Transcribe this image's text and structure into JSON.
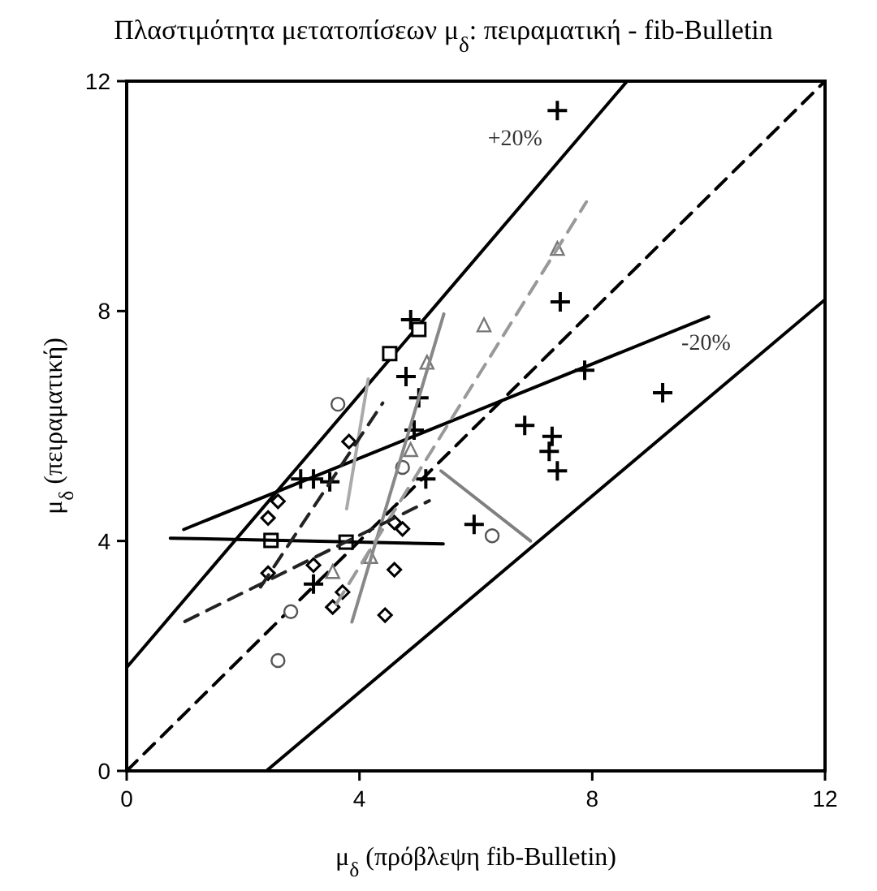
{
  "chart_data": {
    "type": "scatter",
    "title": "Πλαστιμότητα μετατοπίσεων μ$_{δ}$: πειραματική - fib-Bulletin",
    "xlabel": "μ$_{δ}$ (πρόβλεψη fib-Bulletin)",
    "ylabel": "μ$_{δ}$ (πειραματική)",
    "xlim": [
      0,
      12
    ],
    "ylim": [
      0,
      12
    ],
    "xticks": [
      0,
      4,
      8,
      12
    ],
    "yticks": [
      0,
      4,
      8,
      12
    ],
    "grid": false,
    "legend": false,
    "series": [
      {
        "type": "line",
        "color": "#000000",
        "line_style": "dashed",
        "marker": "none",
        "x": [
          0,
          12
        ],
        "values": [
          0,
          12
        ]
      },
      {
        "type": "line",
        "name": "+20%",
        "color": "#000000",
        "line_style": "solid",
        "marker": "none",
        "x": [
          0,
          8.6
        ],
        "values": [
          1.8,
          12
        ]
      },
      {
        "type": "line",
        "name": "-20%",
        "color": "#000000",
        "line_style": "solid",
        "marker": "none",
        "x": [
          2.4,
          12
        ],
        "values": [
          0,
          8.2
        ]
      },
      {
        "type": "scatter",
        "color": "#000000",
        "marker": "cross",
        "x": [
          7.4,
          7.45,
          7.87,
          9.21,
          6.84,
          7.31,
          7.26,
          7.4,
          5.97,
          4.88,
          4.8,
          5.02,
          4.94,
          5.14,
          2.99,
          3.21,
          3.49,
          3.21
        ],
        "values": [
          11.49,
          8.16,
          6.97,
          6.58,
          6.01,
          5.82,
          5.56,
          5.22,
          4.29,
          7.85,
          6.86,
          6.49,
          5.93,
          5.08,
          5.08,
          5.08,
          5.03,
          3.25
        ]
      },
      {
        "type": "scatter",
        "color": "#000000",
        "marker": "square",
        "x": [
          5.02,
          4.52,
          2.48,
          3.77
        ],
        "values": [
          7.68,
          7.26,
          4.01,
          3.98
        ]
      },
      {
        "type": "scatter",
        "color": "#000000",
        "marker": "diamond",
        "x": [
          2.6,
          2.43,
          2.43,
          3.21,
          3.71,
          3.54,
          4.6,
          4.44,
          3.82,
          4.6,
          4.74
        ],
        "values": [
          4.69,
          4.4,
          3.44,
          3.58,
          3.11,
          2.85,
          3.5,
          2.71,
          5.73,
          4.32,
          4.21
        ]
      },
      {
        "type": "scatter",
        "color": "#555555",
        "marker": "circle",
        "x": [
          3.63,
          4.74,
          2.82,
          2.6,
          6.28
        ],
        "values": [
          6.38,
          5.28,
          2.77,
          1.92,
          4.09
        ]
      },
      {
        "type": "scatter",
        "color": "#777777",
        "marker": "triangle",
        "x": [
          5.16,
          4.88,
          4.19,
          3.54,
          7.4,
          6.14
        ],
        "values": [
          7.11,
          5.59,
          3.73,
          3.47,
          9.09,
          7.76
        ]
      },
      {
        "type": "line",
        "color": "#000000",
        "line_style": "solid",
        "marker": "none",
        "x": [
          0.98,
          10.0
        ],
        "values": [
          4.2,
          7.9
        ]
      },
      {
        "type": "line",
        "color": "#000000",
        "line_style": "solid",
        "marker": "none",
        "x": [
          0.75,
          5.44
        ],
        "values": [
          4.05,
          3.95
        ]
      },
      {
        "type": "line",
        "color": "#808080",
        "line_style": "solid",
        "marker": "none",
        "x": [
          5.4,
          6.94
        ],
        "values": [
          5.22,
          4.0
        ]
      },
      {
        "type": "line",
        "color": "#aaaaaa",
        "line_style": "solid",
        "marker": "none",
        "x": [
          3.78,
          4.15
        ],
        "values": [
          4.56,
          6.82
        ]
      },
      {
        "type": "line",
        "color": "#888888",
        "line_style": "solid",
        "marker": "none",
        "x": [
          3.87,
          5.45
        ],
        "values": [
          2.59,
          7.95
        ]
      },
      {
        "type": "line",
        "color": "#999999",
        "line_style": "dashed",
        "marker": "none",
        "x": [
          3.6,
          7.9
        ],
        "values": [
          2.9,
          9.9
        ]
      },
      {
        "type": "line",
        "color": "#222222",
        "line_style": "dashed",
        "marker": "none",
        "x": [
          1.0,
          5.2
        ],
        "values": [
          2.6,
          4.7
        ]
      },
      {
        "type": "line",
        "color": "#222222",
        "line_style": "dashed",
        "marker": "none",
        "x": [
          2.3,
          4.4
        ],
        "values": [
          3.2,
          6.4
        ]
      }
    ]
  }
}
